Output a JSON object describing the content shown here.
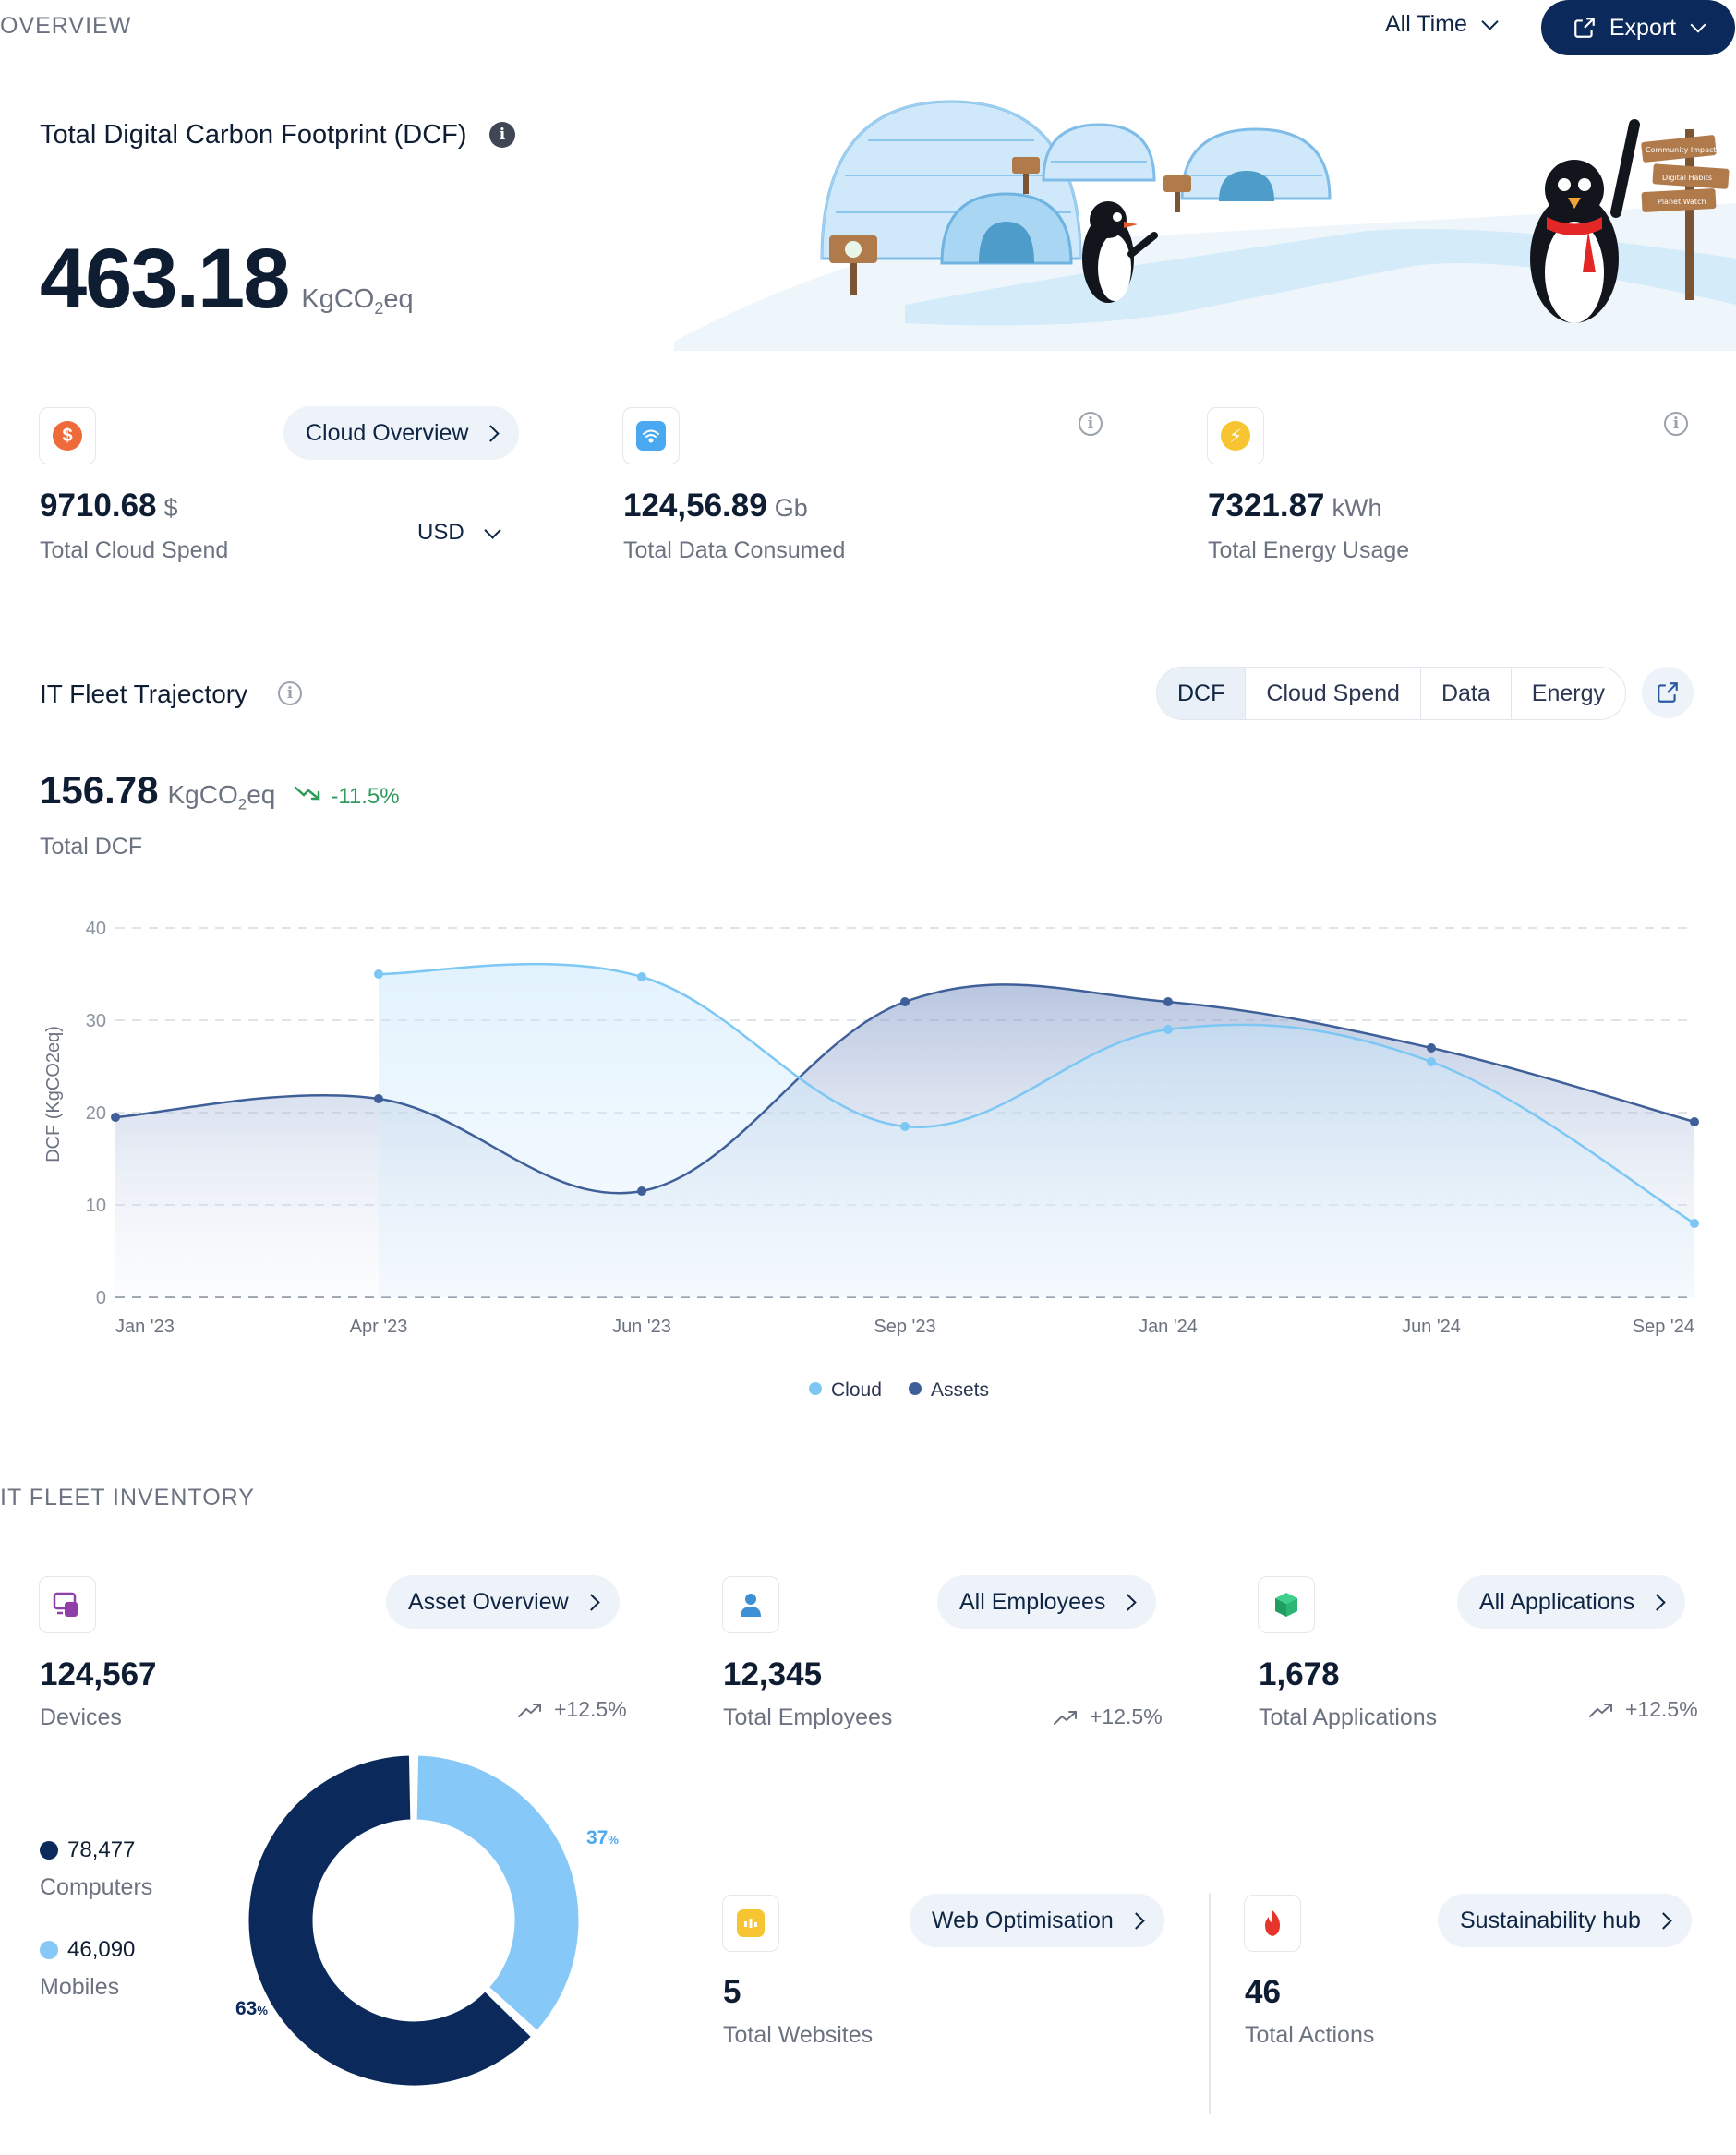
{
  "header": {
    "section_title": "OVERVIEW",
    "period": "All Time",
    "export_label": "Export"
  },
  "dcf": {
    "title": "Total Digital Carbon Footprint (DCF)",
    "value": "463.18",
    "unit_prefix": "KgCO",
    "unit_sub": "2",
    "unit_suffix": "eq"
  },
  "scene": {
    "sign1": "Community Impact",
    "sign2": "Digital Habits",
    "sign3": "Planet Watch"
  },
  "metrics": {
    "cloud": {
      "link": "Cloud Overview",
      "value": "9710.68",
      "unit": "$",
      "label": "Total Cloud Spend",
      "currency": "USD"
    },
    "data": {
      "value": "124,56.89",
      "unit": "Gb",
      "label": "Total Data Consumed"
    },
    "energy": {
      "value": "7321.87",
      "unit": "kWh",
      "label": "Total Energy Usage"
    }
  },
  "trajectory": {
    "title": "IT Fleet Trajectory",
    "tabs": [
      "DCF",
      "Cloud Spend",
      "Data",
      "Energy"
    ],
    "value": "156.78",
    "unit_prefix": "KgCO",
    "unit_sub": "2",
    "unit_suffix": "eq",
    "change": "-11.5%",
    "label": "Total DCF"
  },
  "chart_data": {
    "type": "area",
    "ylabel": "DCF (KgCO2eq)",
    "ylim": [
      0,
      40
    ],
    "yticks": [
      "0",
      "10",
      "20",
      "30",
      "40"
    ],
    "xticks": [
      "Jan '23",
      "Apr '23",
      "Jun '23",
      "Sep '23",
      "Jan '24",
      "Jun '24",
      "Sep '24"
    ],
    "series": [
      {
        "name": "Cloud",
        "color": "#7cc7f4",
        "t": [
          1,
          2,
          3,
          4,
          5,
          6
        ],
        "values": [
          35,
          34.7,
          18.5,
          29,
          25.5,
          8
        ]
      },
      {
        "name": "Assets",
        "color": "#3f5f99",
        "t": [
          0,
          1,
          2,
          3,
          4,
          5,
          6
        ],
        "values": [
          19.5,
          21.5,
          11.5,
          32,
          32,
          27,
          19
        ]
      }
    ]
  },
  "inventory": {
    "section_title": "IT FLEET INVENTORY",
    "devices": {
      "link": "Asset Overview",
      "value": "124,567",
      "label": "Devices",
      "trend": "+12.5%"
    },
    "employees": {
      "link": "All Employees",
      "value": "12,345",
      "label": "Total Employees",
      "trend": "+12.5%"
    },
    "applications": {
      "link": "All Applications",
      "value": "1,678",
      "label": "Total Applications",
      "trend": "+12.5%"
    },
    "computers": {
      "value": "78,477",
      "label": "Computers",
      "percent": "63",
      "color": "#0b2a5b"
    },
    "mobiles": {
      "value": "46,090",
      "label": "Mobiles",
      "percent": "37",
      "color": "#86c8f7"
    },
    "pct_sign": "%",
    "websites": {
      "link": "Web Optimisation",
      "value": "5",
      "label": "Total Websites"
    },
    "actions": {
      "link": "Sustainability hub",
      "value": "46",
      "label": "Total Actions"
    }
  }
}
